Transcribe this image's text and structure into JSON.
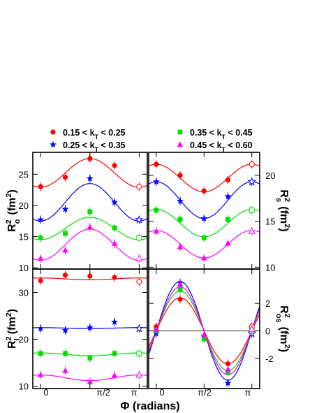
{
  "figure": {
    "xlabel": "Φ (radians)",
    "x_tick_labels": [
      "0",
      "π/2",
      "π"
    ],
    "legend": [
      {
        "label": "0.15 < k_T < 0.25",
        "color": "#ff0000",
        "marker": "circle"
      },
      {
        "label": "0.25 < k_T < 0.35",
        "color": "#0000ff",
        "marker": "star"
      },
      {
        "label": "0.35 < k_T < 0.45",
        "color": "#00dd00",
        "marker": "square"
      },
      {
        "label": "0.45 < k_T < 0.60",
        "color": "#ff00ff",
        "marker": "triangle"
      }
    ]
  },
  "chart_data": [
    {
      "type": "scatter",
      "ylabel": "R²_o (fm²)",
      "xlim": [
        -0.25,
        3.4
      ],
      "ylim": [
        9.8,
        28.5
      ],
      "yticks": [
        10,
        15,
        20,
        25
      ],
      "x": [
        0,
        0.785,
        1.571,
        2.356,
        3.1416
      ],
      "series": [
        {
          "name": "0.15 < k_T < 0.25",
          "color": "#ff0000",
          "marker": "circle",
          "values": [
            23.0,
            24.5,
            27.5,
            26.4,
            23.0
          ],
          "fit": {
            "mean": 25.2,
            "amp": -2.3
          }
        },
        {
          "name": "0.25 < k_T < 0.35",
          "color": "#0000ff",
          "marker": "star",
          "values": [
            17.7,
            19.4,
            24.3,
            20.5,
            17.7
          ],
          "fit": {
            "mean": 20.5,
            "amp": -3.0
          }
        },
        {
          "name": "0.35 < k_T < 0.45",
          "color": "#00dd00",
          "marker": "square",
          "values": [
            14.8,
            15.5,
            19.0,
            16.4,
            14.8
          ],
          "fit": {
            "mean": 16.3,
            "amp": -1.8
          }
        },
        {
          "name": "0.45 < k_T < 0.60",
          "color": "#ff00ff",
          "marker": "triangle",
          "values": [
            11.5,
            12.8,
            16.5,
            13.9,
            11.5
          ],
          "fit": {
            "mean": 13.7,
            "amp": -2.5
          }
        }
      ]
    },
    {
      "type": "scatter",
      "ylabel": "R²_s (fm²)",
      "xlim": [
        -0.25,
        3.4
      ],
      "ylim": [
        9.8,
        22.5
      ],
      "yticks": [
        10,
        15,
        20
      ],
      "x": [
        0,
        0.785,
        1.571,
        2.356,
        3.1416
      ],
      "series": [
        {
          "name": "0.15 < k_T < 0.25",
          "color": "#ff0000",
          "marker": "circle",
          "values": [
            21.2,
            20.0,
            18.3,
            19.5,
            21.2
          ],
          "fit": {
            "mean": 19.7,
            "amp": 1.5
          }
        },
        {
          "name": "0.25 < k_T < 0.35",
          "color": "#0000ff",
          "marker": "star",
          "values": [
            19.3,
            17.2,
            15.3,
            17.7,
            19.3
          ],
          "fit": {
            "mean": 17.3,
            "amp": 2.0
          }
        },
        {
          "name": "0.35 < k_T < 0.45",
          "color": "#00dd00",
          "marker": "square",
          "values": [
            16.2,
            15.2,
            13.2,
            15.2,
            16.2
          ],
          "fit": {
            "mean": 14.8,
            "amp": 1.5
          }
        },
        {
          "name": "0.45 < k_T < 0.60",
          "color": "#ff00ff",
          "marker": "triangle",
          "values": [
            13.9,
            12.2,
            11.0,
            12.6,
            13.9
          ],
          "fit": {
            "mean": 12.5,
            "amp": 1.5
          }
        }
      ]
    },
    {
      "type": "scatter",
      "ylabel": "R²_l (fm²)",
      "xlim": [
        -0.25,
        3.4
      ],
      "ylim": [
        9.5,
        35.0
      ],
      "yticks": [
        10,
        20,
        30
      ],
      "x": [
        0,
        0.785,
        1.571,
        2.356,
        3.1416
      ],
      "series": [
        {
          "name": "0.15 < k_T < 0.25",
          "color": "#ff0000",
          "marker": "circle",
          "values": [
            32.5,
            33.7,
            33.5,
            33.2,
            32.3
          ],
          "fit": {
            "mean": 32.9,
            "amp": 0.2
          }
        },
        {
          "name": "0.25 < k_T < 0.35",
          "color": "#0000ff",
          "marker": "star",
          "values": [
            22.3,
            21.9,
            22.5,
            23.7,
            22.3
          ],
          "fit": {
            "mean": 22.4,
            "amp": 0.1
          }
        },
        {
          "name": "0.35 < k_T < 0.45",
          "color": "#00dd00",
          "marker": "square",
          "values": [
            17.0,
            17.0,
            16.0,
            17.0,
            17.0
          ],
          "fit": {
            "mean": 16.8,
            "amp": 0.3
          }
        },
        {
          "name": "0.45 < k_T < 0.60",
          "color": "#ff00ff",
          "marker": "triangle",
          "values": [
            12.4,
            13.3,
            10.9,
            12.3,
            12.4
          ],
          "fit": {
            "mean": 11.8,
            "amp": 0.6
          }
        }
      ]
    },
    {
      "type": "scatter",
      "ylabel": "R²_os (fm²)",
      "xlim": [
        -0.25,
        3.4
      ],
      "ylim": [
        -4.2,
        4.5
      ],
      "yticks": [
        -2,
        0,
        2
      ],
      "x": [
        0,
        0.785,
        1.571,
        2.356,
        3.1416
      ],
      "series": [
        {
          "name": "0.15 < k_T < 0.25",
          "color": "#ff0000",
          "marker": "circle",
          "values": [
            0.3,
            2.3,
            -0.4,
            -2.4,
            0.3
          ],
          "fit": {
            "amp": 2.4
          }
        },
        {
          "name": "0.25 < k_T < 0.35",
          "color": "#0000ff",
          "marker": "star",
          "values": [
            -0.2,
            3.5,
            -0.4,
            -3.8,
            -0.2
          ],
          "fit": {
            "amp": 3.6
          }
        },
        {
          "name": "0.35 < k_T < 0.45",
          "color": "#00dd00",
          "marker": "square",
          "values": [
            0.0,
            3.0,
            -0.6,
            -3.0,
            0.0
          ],
          "fit": {
            "amp": 2.9
          }
        },
        {
          "name": "0.45 < k_T < 0.60",
          "color": "#ff00ff",
          "marker": "triangle",
          "values": [
            0.1,
            3.4,
            -0.3,
            -2.8,
            0.1
          ],
          "fit": {
            "amp": 3.2
          }
        }
      ]
    }
  ]
}
